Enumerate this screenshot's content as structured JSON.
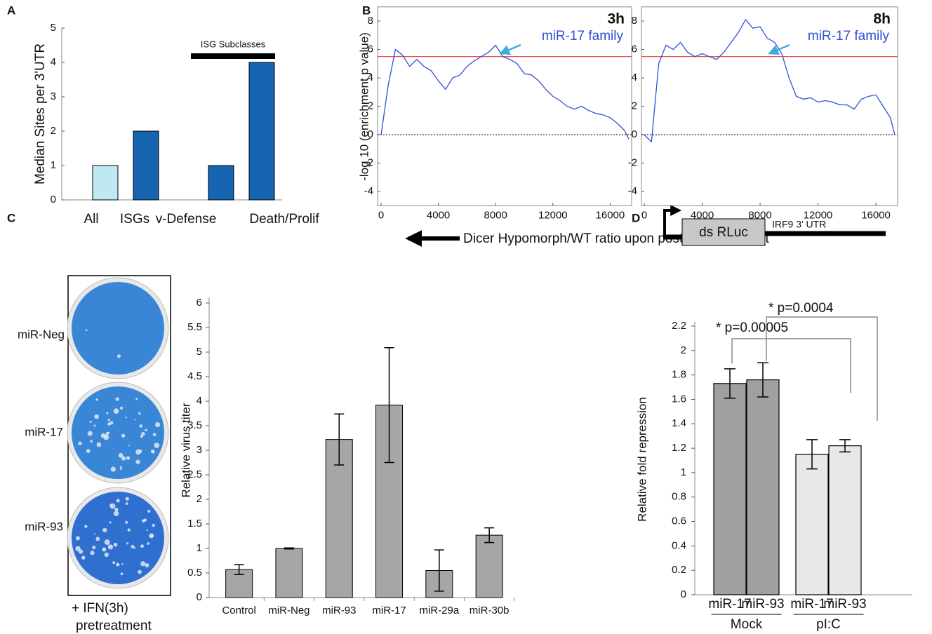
{
  "panel_labels": [
    "A",
    "B",
    "C",
    "D"
  ],
  "chart_data": [
    {
      "type": "bar",
      "categories": [
        "All",
        "ISGs",
        "v-Defense",
        "Death/Prolif"
      ],
      "values": [
        1,
        2,
        1,
        4
      ],
      "colors": [
        "#bfe9f2",
        "#1764b0",
        "#1764b0",
        "#1764b0"
      ],
      "ylabel": "Median Sites per 3'UTR",
      "ylim": [
        0,
        5
      ],
      "yticks": [
        0,
        1,
        2,
        3,
        4,
        5
      ],
      "annotation": "ISG Subclasses"
    },
    {
      "type": "line",
      "title": "3h",
      "ylabel": "-log 10 (enrichment p value)",
      "xlabel": "Dicer Hypomorph/WT ratio upon  post-IFN treatment",
      "x": [
        0,
        500,
        1000,
        1500,
        2000,
        2500,
        3000,
        3500,
        4000,
        4500,
        5000,
        5500,
        6000,
        6500,
        7000,
        7500,
        8000,
        8500,
        9000,
        9500,
        10000,
        10500,
        11000,
        11500,
        12000,
        12500,
        13000,
        13500,
        14000,
        14500,
        15000,
        15500,
        16000,
        16500,
        17000,
        17300
      ],
      "series": [
        {
          "name": "miR-17 family",
          "color": "#2f4fd6",
          "values": [
            0,
            3.5,
            6,
            5.6,
            4.8,
            5.3,
            4.8,
            4.5,
            3.8,
            3.2,
            4,
            4.2,
            4.8,
            5.2,
            5.5,
            5.8,
            6.3,
            5.5,
            5.3,
            5,
            4.3,
            4.2,
            3.8,
            3.2,
            2.7,
            2.4,
            2,
            1.8,
            2,
            1.7,
            1.5,
            1.4,
            1.2,
            0.8,
            0.3,
            -0.3
          ]
        }
      ],
      "threshold": 5.5,
      "threshold_color": "#e53935",
      "xlim": [
        0,
        17500
      ],
      "ylim": [
        -5,
        9
      ],
      "xticks": [
        0,
        4000,
        8000,
        12000,
        16000
      ],
      "yticks": [
        -4,
        -2,
        0,
        2,
        4,
        6,
        8
      ]
    },
    {
      "type": "line",
      "title": "8h",
      "x": [
        0,
        500,
        1000,
        1500,
        2000,
        2500,
        3000,
        3500,
        4000,
        4500,
        5000,
        5500,
        6000,
        6500,
        7000,
        7500,
        8000,
        8500,
        9000,
        9500,
        10000,
        10500,
        11000,
        11500,
        12000,
        12500,
        13000,
        13500,
        14000,
        14500,
        15000,
        15500,
        16000,
        16500,
        17000,
        17300
      ],
      "series": [
        {
          "name": "miR-17 family",
          "color": "#2f4fd6",
          "values": [
            0,
            -0.5,
            5,
            6.3,
            6,
            6.5,
            5.8,
            5.5,
            5.7,
            5.5,
            5.3,
            5.8,
            6.5,
            7.2,
            8.1,
            7.5,
            7.6,
            6.8,
            6.5,
            5.7,
            4,
            2.7,
            2.5,
            2.6,
            2.3,
            2.4,
            2.3,
            2.1,
            2.1,
            1.8,
            2.5,
            2.7,
            2.8,
            2,
            1.2,
            0
          ]
        }
      ],
      "threshold": 5.5,
      "threshold_color": "#e53935",
      "xlim": [
        0,
        17500
      ],
      "ylim": [
        -5,
        9
      ],
      "xticks": [
        0,
        4000,
        8000,
        12000,
        16000
      ],
      "yticks": [
        -4,
        -2,
        0,
        2,
        4,
        6,
        8
      ]
    },
    {
      "type": "bar",
      "categories": [
        "Control",
        "miR-Neg",
        "miR-93",
        "miR-17",
        "miR-29a",
        "miR-30b"
      ],
      "values": [
        0.57,
        1.0,
        3.22,
        3.92,
        0.55,
        1.27
      ],
      "errors": [
        0.1,
        0.01,
        0.52,
        1.17,
        0.42,
        0.15
      ],
      "color": "#a6a6a6",
      "ylabel": "Relative virus titer",
      "ylim": [
        0,
        6
      ],
      "yticks": [
        0,
        0.5,
        1,
        1.5,
        2,
        2.5,
        3,
        3.5,
        4,
        4.5,
        5,
        5.5,
        6
      ],
      "plates": {
        "labels": [
          "miR-Neg",
          "miR-17",
          "miR-93"
        ],
        "caption": [
          "+ IFN(3h)",
          "pretreatment"
        ]
      }
    },
    {
      "type": "grouped_bar",
      "ylabel": "Relative fold repression",
      "ylim": [
        0,
        2.2
      ],
      "yticks": [
        0,
        0.2,
        0.4,
        0.6,
        0.8,
        1,
        1.2,
        1.4,
        1.6,
        1.8,
        2,
        2.2
      ],
      "groups": [
        {
          "name": "Mock",
          "color": "#a0a0a0",
          "categories": [
            "miR-17",
            "miR-93"
          ],
          "values": [
            1.73,
            1.76
          ],
          "errors": [
            0.12,
            0.14
          ]
        },
        {
          "name": "pI:C",
          "color": "#e8e8e8",
          "categories": [
            "miR-17",
            "miR-93"
          ],
          "values": [
            1.15,
            1.22
          ],
          "errors": [
            0.12,
            0.05
          ]
        }
      ],
      "annotations": [
        "* p=0.00005",
        "* p=0.0004"
      ],
      "construct": {
        "box": "ds RLuc",
        "utr": "IRF9 3’ UTR"
      }
    }
  ]
}
